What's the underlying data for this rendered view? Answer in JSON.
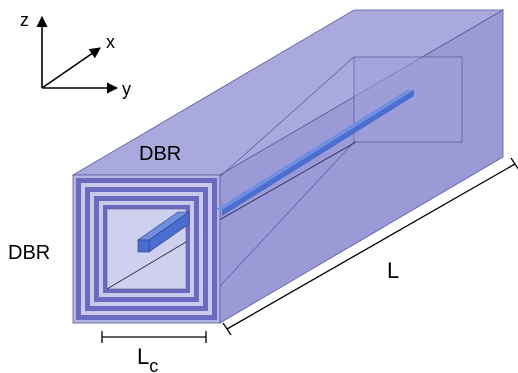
{
  "axes": {
    "z_label": "z",
    "x_label": "x",
    "y_label": "y"
  },
  "labels": {
    "dbr_top": "DBR",
    "dbr_left": "DBR",
    "length": "L",
    "core_width_main": "L",
    "core_width_sub": "c"
  },
  "colors": {
    "shell_fill": "#8f8fd0",
    "top_face": "#a9a9de",
    "right_face": "#9a9ad6",
    "front_face": "#b4b4e2",
    "dbr_dark": "#6a6ac0",
    "dbr_light": "#c9c9ec",
    "core_fill": "#cfcfee",
    "waveguide": "#4a6ed0",
    "waveguide_top": "#6f8fe0",
    "stroke": "#5a5aa0"
  }
}
